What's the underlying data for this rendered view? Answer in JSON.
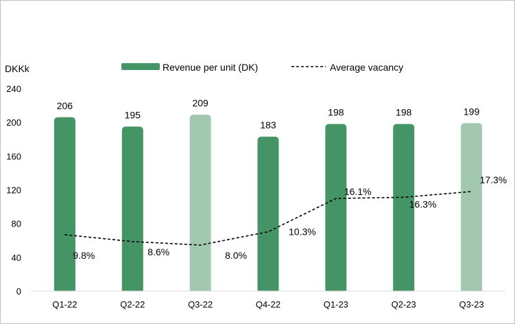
{
  "chart_data": {
    "type": "bar",
    "unit_label": "DKKk",
    "categories": [
      "Q1-22",
      "Q2-22",
      "Q3-22",
      "Q4-22",
      "Q1-23",
      "Q2-23",
      "Q3-23"
    ],
    "series": [
      {
        "name": "Revenue per unit (DK)",
        "type": "bar",
        "values": [
          206,
          195,
          209,
          183,
          198,
          198,
          199
        ],
        "labels": [
          "206",
          "195",
          "209",
          "183",
          "198",
          "198",
          "199"
        ],
        "colors": [
          "#459466",
          "#459466",
          "#a2c8b0",
          "#459466",
          "#459466",
          "#459466",
          "#a2c8b0"
        ]
      },
      {
        "name": "Average vacancy",
        "type": "line",
        "style": "dashed",
        "values": [
          9.8,
          8.6,
          8.0,
          10.3,
          16.1,
          16.3,
          17.3
        ],
        "labels": [
          "9.8%",
          "8.6%",
          "8.0%",
          "10.3%",
          "16.1%",
          "16.3%",
          "17.3%"
        ]
      }
    ],
    "y_ticks": [
      "0",
      "40",
      "80",
      "120",
      "160",
      "200",
      "240"
    ],
    "ylim": [
      0,
      240
    ],
    "legend_position": "top"
  }
}
